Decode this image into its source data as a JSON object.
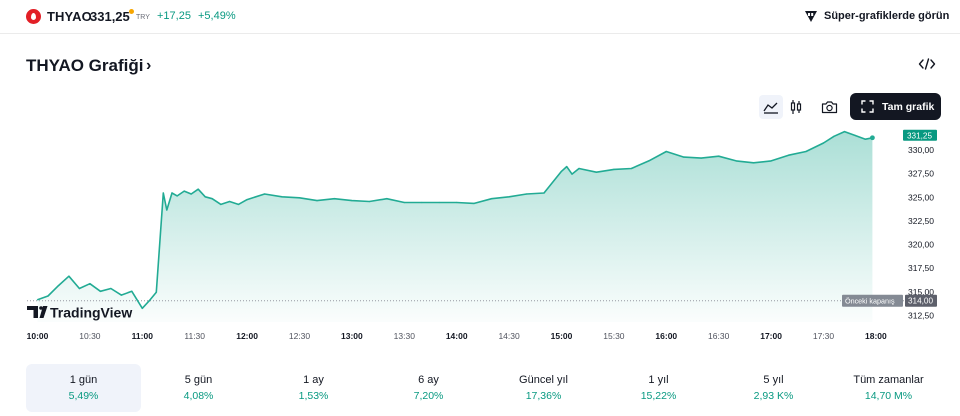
{
  "header": {
    "symbol": "THYAO",
    "price": "331,25",
    "currency": "TRY",
    "change": "+17,25",
    "change_percent": "+5,49%",
    "super_charts_label": "Süper-grafiklerde görün"
  },
  "chart_header": {
    "title": "THYAO Grafiği",
    "chevron": "›",
    "embed_icon": "code-embed-icon"
  },
  "toolbar": {
    "area_icon": "area-chart-icon",
    "candle_icon": "candlestick-icon",
    "snapshot_icon": "camera-icon",
    "fullscreen_label": "Tam grafik"
  },
  "colors": {
    "accent": "#089981",
    "line": "#22ab94",
    "dark": "#131722",
    "logo_red": "#e21f26"
  },
  "chart_data": {
    "type": "area",
    "watermark": "TradingView",
    "current_price_label": "331,25",
    "prev_close_label": "Önceki kapanış",
    "prev_close_value": "314,00",
    "prev_close": 314,
    "ylim": [
      311.75,
      332.6
    ],
    "y_ticks": [
      312.5,
      315,
      317.5,
      320,
      322.5,
      325,
      327.5,
      330
    ],
    "y_tick_labels": [
      "312,50",
      "315,00",
      "317,50",
      "320,00",
      "322,50",
      "325,00",
      "327,50",
      "330,00"
    ],
    "x_ticks": [
      "10:00",
      "10:30",
      "11:00",
      "11:30",
      "12:00",
      "12:30",
      "13:00",
      "13:30",
      "14:00",
      "14:30",
      "15:00",
      "15:30",
      "16:00",
      "16:30",
      "17:00",
      "17:30",
      "18:00"
    ],
    "x_tick_bold": [
      true,
      false,
      true,
      false,
      true,
      false,
      true,
      false,
      true,
      false,
      true,
      false,
      true,
      false,
      true,
      false,
      true
    ],
    "series": [
      {
        "x": [
          "10:00",
          "10:06",
          "10:12",
          "10:18",
          "10:24",
          "10:30",
          "10:36",
          "10:42",
          "10:48",
          "10:54",
          "11:00",
          "11:04",
          "11:08",
          "11:12",
          "11:14",
          "11:17",
          "11:20",
          "11:24",
          "11:28",
          "11:32",
          "11:36",
          "11:40",
          "11:45",
          "11:50",
          "11:55",
          "12:00",
          "12:10",
          "12:20",
          "12:30",
          "12:40",
          "12:50",
          "13:00",
          "13:10",
          "13:20",
          "13:30",
          "13:40",
          "13:50",
          "14:00",
          "14:10",
          "14:20",
          "14:30",
          "14:40",
          "14:50",
          "15:00",
          "15:03",
          "15:06",
          "15:10",
          "15:20",
          "15:30",
          "15:40",
          "15:50",
          "16:00",
          "16:10",
          "16:20",
          "16:30",
          "16:40",
          "16:50",
          "17:00",
          "17:10",
          "17:20",
          "17:30",
          "17:36",
          "17:42",
          "17:48",
          "17:54",
          "17:58"
        ],
        "values": [
          314.1,
          314.5,
          315.6,
          316.6,
          315.3,
          315.8,
          315.0,
          315.3,
          314.6,
          315.0,
          313.2,
          314.0,
          314.9,
          325.4,
          323.6,
          325.4,
          325.1,
          325.6,
          325.3,
          325.8,
          325.0,
          324.8,
          324.2,
          324.5,
          324.2,
          324.7,
          325.3,
          325.0,
          324.9,
          324.6,
          324.8,
          324.6,
          324.5,
          324.8,
          324.4,
          324.4,
          324.4,
          324.4,
          324.3,
          324.8,
          325.0,
          325.3,
          325.4,
          327.7,
          328.2,
          327.4,
          328.0,
          327.6,
          327.9,
          328.0,
          328.8,
          329.8,
          329.2,
          329.1,
          329.3,
          328.8,
          328.6,
          328.8,
          329.4,
          329.8,
          330.7,
          331.4,
          331.9,
          331.5,
          331.1,
          331.25
        ]
      }
    ]
  },
  "periods": [
    {
      "label": "1 gün",
      "value": "5,49%",
      "active": true
    },
    {
      "label": "5 gün",
      "value": "4,08%",
      "active": false
    },
    {
      "label": "1 ay",
      "value": "1,53%",
      "active": false
    },
    {
      "label": "6 ay",
      "value": "7,20%",
      "active": false
    },
    {
      "label": "Güncel yıl",
      "value": "17,36%",
      "active": false
    },
    {
      "label": "1 yıl",
      "value": "15,22%",
      "active": false
    },
    {
      "label": "5 yıl",
      "value": "2,93 K%",
      "active": false
    },
    {
      "label": "Tüm zamanlar",
      "value": "14,70 M%",
      "active": false
    }
  ]
}
